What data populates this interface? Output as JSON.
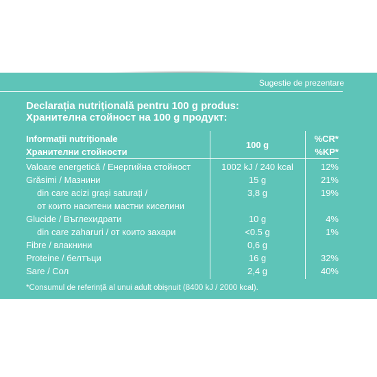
{
  "top_label": "Sugestie de prezentare",
  "title_ro": "Declarația nutrițională pentru 100 g produs:",
  "title_bg": "Хранителна стойност на 100 g продукт:",
  "header": {
    "info_ro": "Informații nutriționale",
    "info_bg": "Хранителни стойности",
    "amount": "100 g",
    "cr": "%CR*",
    "kp": "%KP*"
  },
  "rows": [
    {
      "label": "Valoare energetică / Енергийна стойност",
      "value": "1002 kJ / 240 kcal",
      "pct": "12%"
    },
    {
      "label": "Grăsimi / Мазнини",
      "value": "15 g",
      "pct": "21%"
    },
    {
      "label": "din care acizi grași saturați /",
      "value": "3,8 g",
      "pct": "19%"
    },
    {
      "label": "от които наситени мастни киселини",
      "value": "",
      "pct": ""
    },
    {
      "label": "Glucide / Въглехидрати",
      "value": "10 g",
      "pct": "4%"
    },
    {
      "label": "din care zaharuri / от които захари",
      "value": "<0.5 g",
      "pct": "1%"
    },
    {
      "label": "Fibre / влакнини",
      "value": "0,6 g",
      "pct": ""
    },
    {
      "label": "Proteine / белтъци",
      "value": "16 g",
      "pct": "32%"
    },
    {
      "label": "Sare / Сол",
      "value": "2,4 g",
      "pct": "40%"
    }
  ],
  "footnote": "*Consumul de referință al unui adult obișnuit (8400 kJ / 2000 kcal).",
  "colors": {
    "panel": "#5ec4b8",
    "text": "#ffffff"
  }
}
